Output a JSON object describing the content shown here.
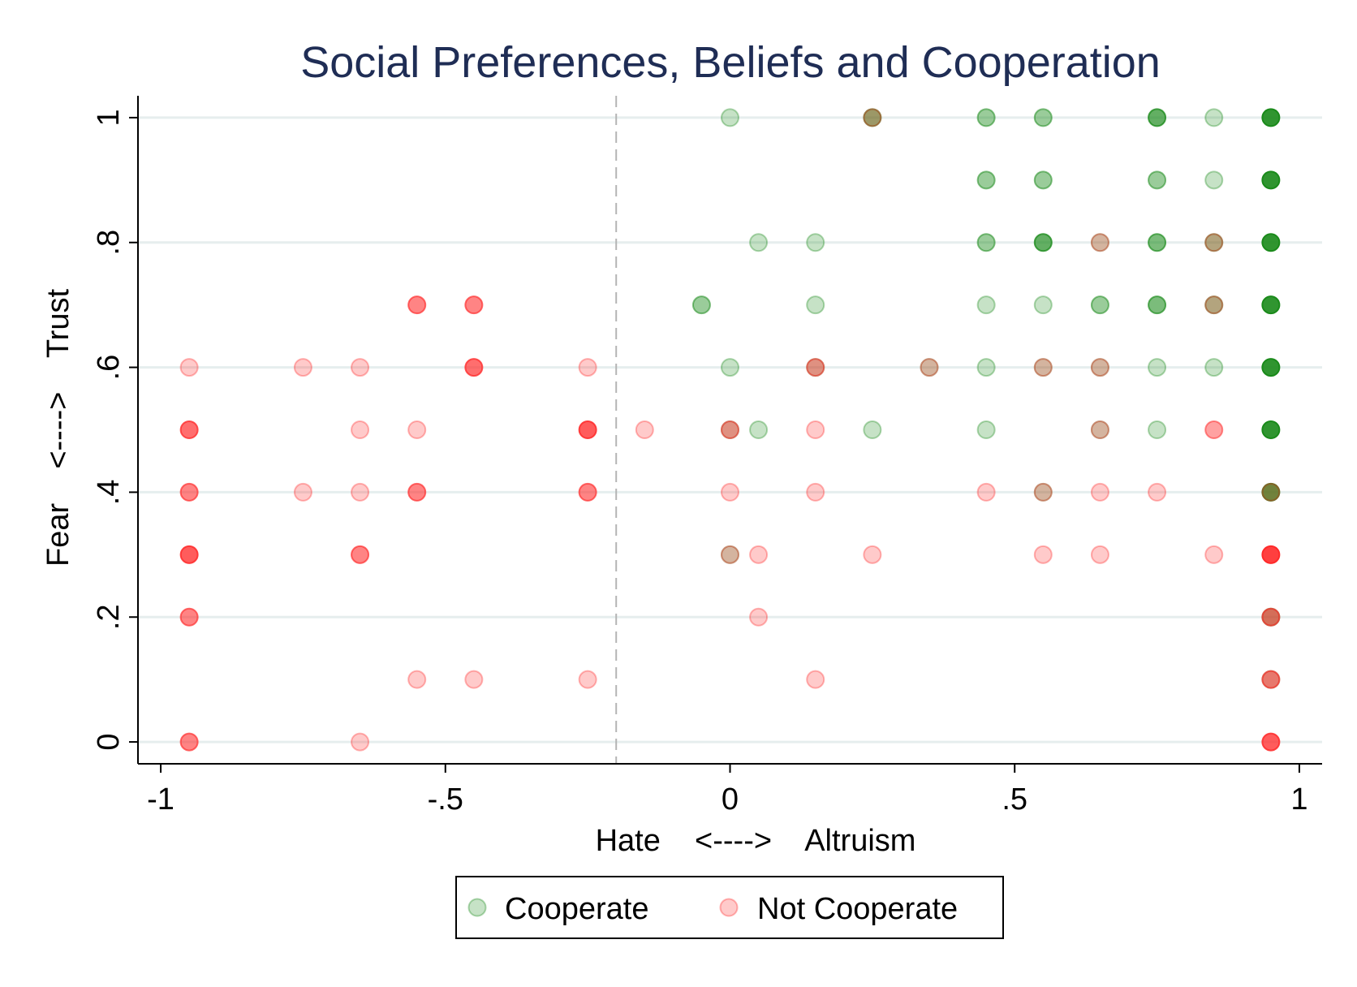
{
  "chart_data": {
    "type": "scatter",
    "title": "Social Preferences, Beliefs and Cooperation",
    "xlabel": "Hate    <---->    Altruism",
    "ylabel": "Fear    <---->    Trust",
    "xlim": [
      -1.04,
      1.04
    ],
    "ylim": [
      -0.035,
      1.035
    ],
    "x_ticks": [
      -1,
      -0.5,
      0,
      0.5,
      1
    ],
    "x_tick_labels": [
      "-1",
      "-.5",
      "0",
      ".5",
      "1"
    ],
    "y_ticks": [
      0,
      0.2,
      0.4,
      0.6,
      0.8,
      1
    ],
    "y_tick_labels": [
      "0",
      ".2",
      ".4",
      ".6",
      ".8",
      "1"
    ],
    "grid": "horizontal",
    "reference_line": {
      "x": -0.2,
      "style": "dashed"
    },
    "legend": {
      "placement": "bottom"
    },
    "colors": {
      "cooperate": "#1a8a1a",
      "not_cooperate": "#ff2a2a",
      "title": "#1f2d55"
    },
    "series": [
      {
        "name": "Cooperate",
        "points": [
          {
            "x": 0,
            "y": 1,
            "n": 1
          },
          {
            "x": 0.25,
            "y": 1,
            "n": 3
          },
          {
            "x": 0.45,
            "y": 1,
            "n": 2
          },
          {
            "x": 0.55,
            "y": 1,
            "n": 2
          },
          {
            "x": 0.75,
            "y": 1,
            "n": 4
          },
          {
            "x": 0.85,
            "y": 1,
            "n": 1
          },
          {
            "x": 0.95,
            "y": 1,
            "n": 8
          },
          {
            "x": 0.45,
            "y": 0.9,
            "n": 2
          },
          {
            "x": 0.55,
            "y": 0.9,
            "n": 2
          },
          {
            "x": 0.75,
            "y": 0.9,
            "n": 2
          },
          {
            "x": 0.85,
            "y": 0.9,
            "n": 1
          },
          {
            "x": 0.95,
            "y": 0.9,
            "n": 8
          },
          {
            "x": 0.05,
            "y": 0.8,
            "n": 1
          },
          {
            "x": 0.15,
            "y": 0.8,
            "n": 1
          },
          {
            "x": 0.45,
            "y": 0.8,
            "n": 2
          },
          {
            "x": 0.55,
            "y": 0.8,
            "n": 4
          },
          {
            "x": 0.65,
            "y": 0.8,
            "n": 1
          },
          {
            "x": 0.75,
            "y": 0.8,
            "n": 3
          },
          {
            "x": 0.85,
            "y": 0.8,
            "n": 2
          },
          {
            "x": 0.95,
            "y": 0.8,
            "n": 8
          },
          {
            "x": -0.05,
            "y": 0.7,
            "n": 2
          },
          {
            "x": 0.15,
            "y": 0.7,
            "n": 1
          },
          {
            "x": 0.45,
            "y": 0.7,
            "n": 1
          },
          {
            "x": 0.55,
            "y": 0.7,
            "n": 1
          },
          {
            "x": 0.65,
            "y": 0.7,
            "n": 2
          },
          {
            "x": 0.75,
            "y": 0.7,
            "n": 3
          },
          {
            "x": 0.85,
            "y": 0.7,
            "n": 2
          },
          {
            "x": 0.95,
            "y": 0.7,
            "n": 8
          },
          {
            "x": 0,
            "y": 0.6,
            "n": 1
          },
          {
            "x": 0.15,
            "y": 0.6,
            "n": 1
          },
          {
            "x": 0.35,
            "y": 0.6,
            "n": 1
          },
          {
            "x": 0.45,
            "y": 0.6,
            "n": 1
          },
          {
            "x": 0.55,
            "y": 0.6,
            "n": 1
          },
          {
            "x": 0.65,
            "y": 0.6,
            "n": 1
          },
          {
            "x": 0.75,
            "y": 0.6,
            "n": 1
          },
          {
            "x": 0.85,
            "y": 0.6,
            "n": 1
          },
          {
            "x": 0.95,
            "y": 0.6,
            "n": 8
          },
          {
            "x": 0,
            "y": 0.5,
            "n": 1
          },
          {
            "x": 0.05,
            "y": 0.5,
            "n": 1
          },
          {
            "x": 0.25,
            "y": 0.5,
            "n": 1
          },
          {
            "x": 0.45,
            "y": 0.5,
            "n": 1
          },
          {
            "x": 0.65,
            "y": 0.5,
            "n": 1
          },
          {
            "x": 0.75,
            "y": 0.5,
            "n": 1
          },
          {
            "x": 0.95,
            "y": 0.5,
            "n": 8
          },
          {
            "x": 0.55,
            "y": 0.4,
            "n": 1
          },
          {
            "x": 0.95,
            "y": 0.4,
            "n": 6
          },
          {
            "x": 0,
            "y": 0.3,
            "n": 1
          },
          {
            "x": 0.95,
            "y": 0.2,
            "n": 2
          },
          {
            "x": 0.95,
            "y": 0.1,
            "n": 1
          }
        ]
      },
      {
        "name": "Not Cooperate",
        "points": [
          {
            "x": 0.25,
            "y": 1,
            "n": 1
          },
          {
            "x": 0.85,
            "y": 0.8,
            "n": 1
          },
          {
            "x": 0.65,
            "y": 0.8,
            "n": 1
          },
          {
            "x": 0.85,
            "y": 0.7,
            "n": 1
          },
          {
            "x": -0.55,
            "y": 0.7,
            "n": 3
          },
          {
            "x": -0.45,
            "y": 0.7,
            "n": 3
          },
          {
            "x": -0.95,
            "y": 0.6,
            "n": 1
          },
          {
            "x": -0.75,
            "y": 0.6,
            "n": 1
          },
          {
            "x": -0.65,
            "y": 0.6,
            "n": 1
          },
          {
            "x": -0.45,
            "y": 0.6,
            "n": 4
          },
          {
            "x": -0.25,
            "y": 0.6,
            "n": 1
          },
          {
            "x": 0.15,
            "y": 0.6,
            "n": 2
          },
          {
            "x": 0.35,
            "y": 0.6,
            "n": 1
          },
          {
            "x": 0.55,
            "y": 0.6,
            "n": 1
          },
          {
            "x": 0.65,
            "y": 0.6,
            "n": 1
          },
          {
            "x": -0.95,
            "y": 0.5,
            "n": 4
          },
          {
            "x": -0.65,
            "y": 0.5,
            "n": 1
          },
          {
            "x": -0.55,
            "y": 0.5,
            "n": 1
          },
          {
            "x": -0.25,
            "y": 0.5,
            "n": 5
          },
          {
            "x": -0.15,
            "y": 0.5,
            "n": 1
          },
          {
            "x": 0,
            "y": 0.5,
            "n": 2
          },
          {
            "x": 0.15,
            "y": 0.5,
            "n": 1
          },
          {
            "x": 0.65,
            "y": 0.5,
            "n": 1
          },
          {
            "x": 0.85,
            "y": 0.5,
            "n": 2
          },
          {
            "x": -0.95,
            "y": 0.4,
            "n": 3
          },
          {
            "x": -0.75,
            "y": 0.4,
            "n": 1
          },
          {
            "x": -0.65,
            "y": 0.4,
            "n": 1
          },
          {
            "x": -0.55,
            "y": 0.4,
            "n": 3
          },
          {
            "x": -0.25,
            "y": 0.4,
            "n": 3
          },
          {
            "x": 0,
            "y": 0.4,
            "n": 1
          },
          {
            "x": 0.15,
            "y": 0.4,
            "n": 1
          },
          {
            "x": 0.45,
            "y": 0.4,
            "n": 1
          },
          {
            "x": 0.55,
            "y": 0.4,
            "n": 1
          },
          {
            "x": 0.65,
            "y": 0.4,
            "n": 1
          },
          {
            "x": 0.75,
            "y": 0.4,
            "n": 1
          },
          {
            "x": 0.95,
            "y": 0.4,
            "n": 1
          },
          {
            "x": -0.95,
            "y": 0.3,
            "n": 5
          },
          {
            "x": -0.65,
            "y": 0.3,
            "n": 3
          },
          {
            "x": 0,
            "y": 0.3,
            "n": 1
          },
          {
            "x": 0.05,
            "y": 0.3,
            "n": 1
          },
          {
            "x": 0.25,
            "y": 0.3,
            "n": 1
          },
          {
            "x": 0.55,
            "y": 0.3,
            "n": 1
          },
          {
            "x": 0.65,
            "y": 0.3,
            "n": 1
          },
          {
            "x": 0.85,
            "y": 0.3,
            "n": 1
          },
          {
            "x": 0.95,
            "y": 0.3,
            "n": 8
          },
          {
            "x": -0.95,
            "y": 0.2,
            "n": 3
          },
          {
            "x": 0.05,
            "y": 0.2,
            "n": 1
          },
          {
            "x": 0.95,
            "y": 0.2,
            "n": 3
          },
          {
            "x": -0.55,
            "y": 0.1,
            "n": 1
          },
          {
            "x": -0.45,
            "y": 0.1,
            "n": 1
          },
          {
            "x": -0.25,
            "y": 0.1,
            "n": 1
          },
          {
            "x": 0.15,
            "y": 0.1,
            "n": 1
          },
          {
            "x": 0.95,
            "y": 0.1,
            "n": 3
          },
          {
            "x": -0.95,
            "y": 0,
            "n": 3
          },
          {
            "x": -0.65,
            "y": 0,
            "n": 1
          },
          {
            "x": 0.95,
            "y": 0,
            "n": 5
          }
        ]
      }
    ]
  }
}
